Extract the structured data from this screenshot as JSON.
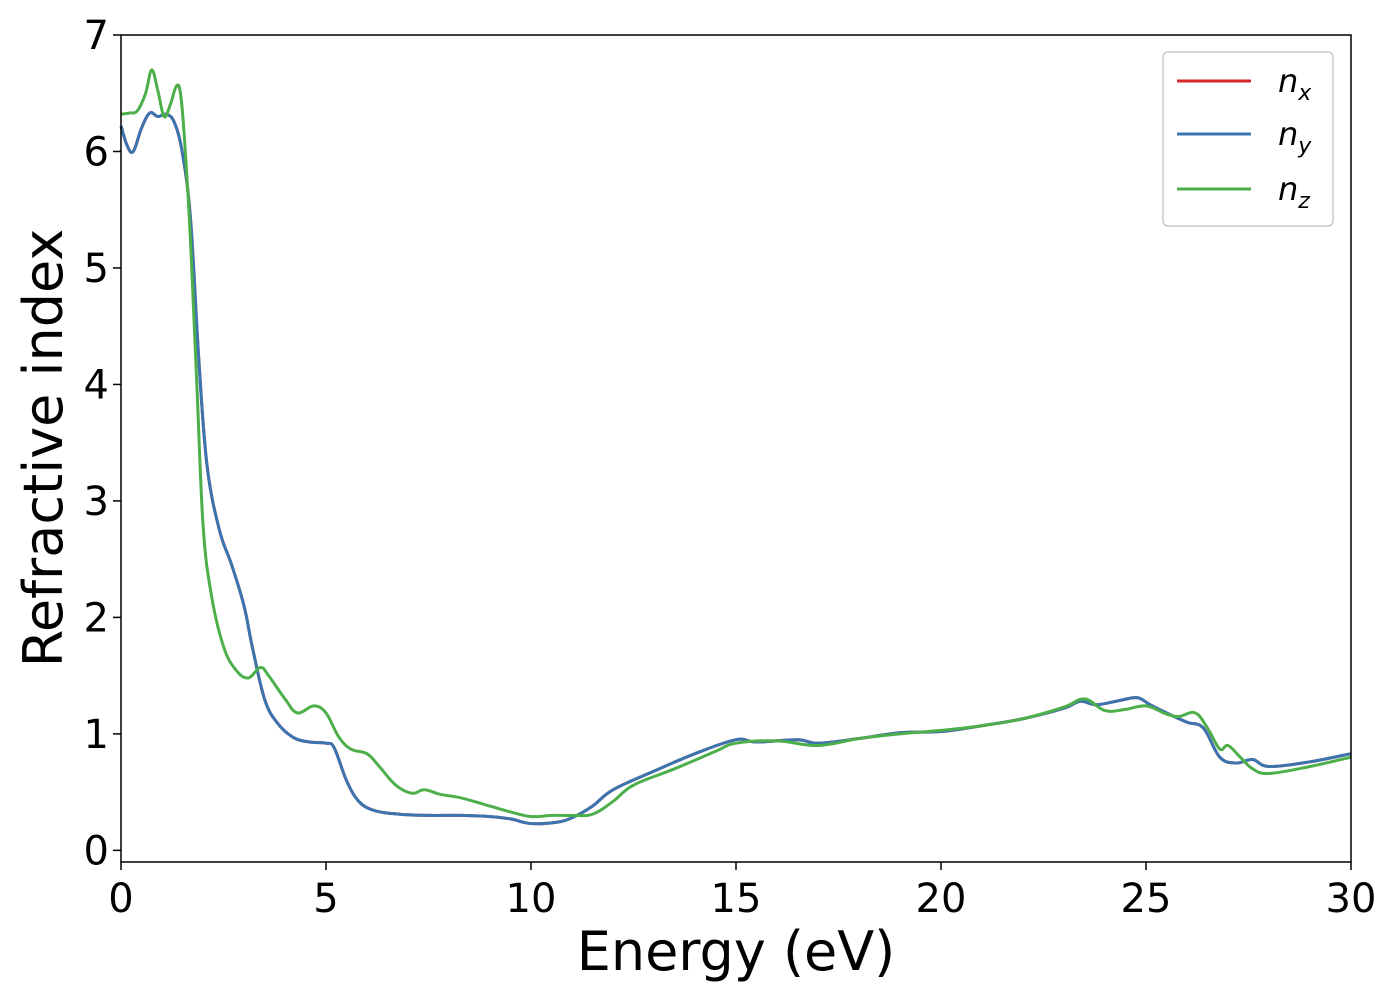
{
  "chart_data": {
    "type": "line",
    "xlabel": "Energy (eV)",
    "ylabel": "Refractive index",
    "xlim": [
      0,
      30
    ],
    "ylim": [
      -0.1,
      7
    ],
    "xticks": [
      "0",
      "5",
      "10",
      "15",
      "20",
      "25",
      "30"
    ],
    "yticks": [
      "0",
      "1",
      "2",
      "3",
      "4",
      "5",
      "6",
      "7"
    ],
    "grid": false,
    "legend_position": "top-right",
    "series": [
      {
        "name": "n_x",
        "legend_base": "n",
        "legend_sub": "x",
        "color": "#d62728",
        "x": [
          0,
          0.15,
          0.3,
          0.5,
          0.7,
          0.9,
          1.1,
          1.3,
          1.5,
          1.7,
          1.9,
          2.1,
          2.4,
          2.7,
          3.0,
          3.2,
          3.5,
          3.8,
          4.2,
          4.6,
          5.0,
          5.2,
          5.5,
          5.8,
          6.2,
          6.8,
          7.5,
          8.3,
          9.0,
          9.5,
          10.0,
          10.6,
          11.0,
          11.5,
          12.0,
          13.0,
          14.0,
          15.0,
          15.5,
          16.5,
          17.0,
          18.0,
          19.0,
          20.0,
          21.0,
          22.0,
          23.0,
          23.4,
          23.8,
          24.4,
          24.8,
          25.1,
          25.5,
          26.0,
          26.4,
          26.8,
          27.2,
          27.6,
          28.0,
          29.0,
          30.0
        ],
        "values": [
          6.22,
          6.05,
          6.0,
          6.2,
          6.33,
          6.3,
          6.32,
          6.25,
          5.98,
          5.4,
          4.2,
          3.3,
          2.75,
          2.45,
          2.1,
          1.75,
          1.3,
          1.1,
          0.97,
          0.93,
          0.92,
          0.88,
          0.6,
          0.42,
          0.34,
          0.31,
          0.3,
          0.3,
          0.29,
          0.27,
          0.23,
          0.24,
          0.28,
          0.38,
          0.52,
          0.68,
          0.83,
          0.95,
          0.93,
          0.95,
          0.92,
          0.96,
          1.01,
          1.02,
          1.07,
          1.13,
          1.22,
          1.28,
          1.25,
          1.29,
          1.31,
          1.25,
          1.18,
          1.1,
          1.05,
          0.8,
          0.75,
          0.78,
          0.72,
          0.76,
          0.83
        ]
      },
      {
        "name": "n_y",
        "legend_base": "n",
        "legend_sub": "y",
        "color": "#3a75b0",
        "x": [
          0,
          0.15,
          0.3,
          0.5,
          0.7,
          0.9,
          1.1,
          1.3,
          1.5,
          1.7,
          1.9,
          2.1,
          2.4,
          2.7,
          3.0,
          3.2,
          3.5,
          3.8,
          4.2,
          4.6,
          5.0,
          5.2,
          5.5,
          5.8,
          6.2,
          6.8,
          7.5,
          8.3,
          9.0,
          9.5,
          10.0,
          10.6,
          11.0,
          11.5,
          12.0,
          13.0,
          14.0,
          15.0,
          15.5,
          16.5,
          17.0,
          18.0,
          19.0,
          20.0,
          21.0,
          22.0,
          23.0,
          23.4,
          23.8,
          24.4,
          24.8,
          25.1,
          25.5,
          26.0,
          26.4,
          26.8,
          27.2,
          27.6,
          28.0,
          29.0,
          30.0
        ],
        "values": [
          6.22,
          6.05,
          6.0,
          6.2,
          6.33,
          6.3,
          6.32,
          6.25,
          5.98,
          5.4,
          4.2,
          3.3,
          2.75,
          2.45,
          2.1,
          1.75,
          1.3,
          1.1,
          0.97,
          0.93,
          0.92,
          0.88,
          0.6,
          0.42,
          0.34,
          0.31,
          0.3,
          0.3,
          0.29,
          0.27,
          0.23,
          0.24,
          0.28,
          0.38,
          0.52,
          0.68,
          0.83,
          0.95,
          0.93,
          0.95,
          0.92,
          0.96,
          1.01,
          1.02,
          1.07,
          1.13,
          1.22,
          1.28,
          1.25,
          1.29,
          1.31,
          1.25,
          1.18,
          1.1,
          1.05,
          0.8,
          0.75,
          0.78,
          0.72,
          0.76,
          0.83
        ]
      },
      {
        "name": "n_z",
        "legend_base": "n",
        "legend_sub": "z",
        "color": "#4daf4a",
        "x": [
          0,
          0.2,
          0.4,
          0.6,
          0.75,
          0.9,
          1.05,
          1.2,
          1.35,
          1.45,
          1.55,
          1.7,
          1.85,
          2.0,
          2.2,
          2.5,
          2.8,
          3.1,
          3.4,
          3.6,
          4.0,
          4.3,
          4.7,
          5.0,
          5.3,
          5.6,
          6.0,
          6.3,
          6.7,
          7.1,
          7.4,
          7.8,
          8.3,
          9.0,
          9.5,
          10.0,
          10.5,
          11.0,
          11.5,
          12.0,
          12.5,
          13.5,
          14.5,
          15.0,
          16.0,
          17.0,
          18.0,
          19.0,
          20.0,
          21.0,
          22.0,
          23.0,
          23.5,
          24.0,
          24.5,
          25.0,
          25.5,
          25.8,
          26.2,
          26.5,
          26.8,
          27.0,
          27.3,
          27.6,
          28.0,
          29.0,
          30.0
        ],
        "values": [
          6.32,
          6.33,
          6.35,
          6.5,
          6.7,
          6.52,
          6.3,
          6.4,
          6.56,
          6.5,
          6.1,
          5.2,
          4.0,
          2.8,
          2.2,
          1.75,
          1.55,
          1.48,
          1.57,
          1.5,
          1.3,
          1.18,
          1.24,
          1.18,
          0.98,
          0.87,
          0.83,
          0.72,
          0.56,
          0.49,
          0.52,
          0.48,
          0.45,
          0.38,
          0.33,
          0.29,
          0.3,
          0.3,
          0.31,
          0.42,
          0.56,
          0.7,
          0.85,
          0.92,
          0.94,
          0.9,
          0.96,
          1.0,
          1.03,
          1.07,
          1.13,
          1.23,
          1.3,
          1.2,
          1.21,
          1.24,
          1.17,
          1.15,
          1.18,
          1.05,
          0.87,
          0.9,
          0.8,
          0.7,
          0.66,
          0.72,
          0.8
        ]
      }
    ]
  }
}
